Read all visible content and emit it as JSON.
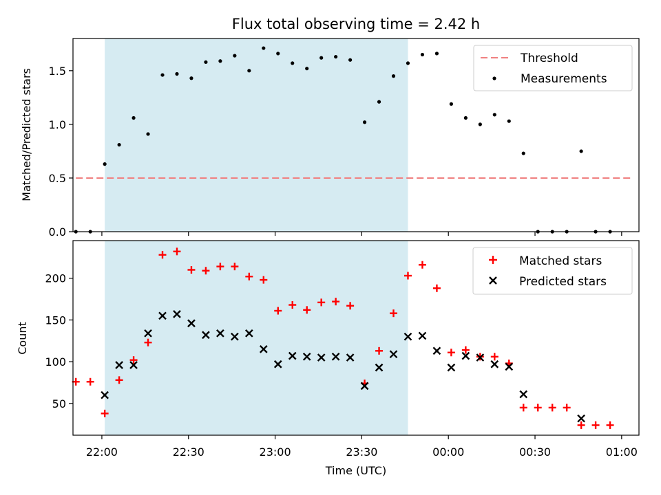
{
  "chart_data": [
    {
      "type": "scatter",
      "title": "Flux total observing time = 2.42 h",
      "xlabel": "",
      "ylabel": "Matched/Predicted stars",
      "xlim": [
        "21:50",
        "01:06"
      ],
      "ylim": [
        0,
        1.8
      ],
      "yticks": [
        0.0,
        0.5,
        1.0,
        1.5
      ],
      "ytick_labels": [
        "0.0",
        "0.5",
        "1.0",
        "1.5"
      ],
      "shaded_interval": [
        "22:01",
        "23:46"
      ],
      "shade_color": "#add8e6",
      "legend_position": "upper right",
      "threshold": {
        "name": "Threshold",
        "value": 0.5,
        "x": [
          "21:51",
          "01:04"
        ],
        "color": "#f08080"
      },
      "series": [
        {
          "name": "Measurements",
          "marker": "dot",
          "color": "#000000",
          "points": [
            [
              "21:51",
              0.0
            ],
            [
              "21:56",
              0.0
            ],
            [
              "22:01",
              0.63
            ],
            [
              "22:06",
              0.81
            ],
            [
              "22:11",
              1.06
            ],
            [
              "22:16",
              0.91
            ],
            [
              "22:21",
              1.46
            ],
            [
              "22:26",
              1.47
            ],
            [
              "22:31",
              1.43
            ],
            [
              "22:36",
              1.58
            ],
            [
              "22:41",
              1.59
            ],
            [
              "22:46",
              1.64
            ],
            [
              "22:51",
              1.5
            ],
            [
              "22:56",
              1.71
            ],
            [
              "23:01",
              1.66
            ],
            [
              "23:06",
              1.57
            ],
            [
              "23:11",
              1.52
            ],
            [
              "23:16",
              1.62
            ],
            [
              "23:21",
              1.63
            ],
            [
              "23:26",
              1.6
            ],
            [
              "23:31",
              1.02
            ],
            [
              "23:36",
              1.21
            ],
            [
              "23:41",
              1.45
            ],
            [
              "23:46",
              1.57
            ],
            [
              "23:51",
              1.65
            ],
            [
              "23:56",
              1.66
            ],
            [
              "00:01",
              1.19
            ],
            [
              "00:06",
              1.06
            ],
            [
              "00:11",
              1.0
            ],
            [
              "00:16",
              1.09
            ],
            [
              "00:21",
              1.03
            ],
            [
              "00:26",
              0.73
            ],
            [
              "00:31",
              0.0
            ],
            [
              "00:36",
              0.0
            ],
            [
              "00:41",
              0.0
            ],
            [
              "00:46",
              0.75
            ],
            [
              "00:51",
              0.0
            ],
            [
              "00:56",
              0.0
            ]
          ]
        }
      ]
    },
    {
      "type": "scatter",
      "title": "",
      "xlabel": "Time (UTC)",
      "ylabel": "Count",
      "xlim": [
        "21:50",
        "01:06"
      ],
      "ylim": [
        12,
        245
      ],
      "yticks": [
        50,
        100,
        150,
        200
      ],
      "ytick_labels": [
        "50",
        "100",
        "150",
        "200"
      ],
      "xticks": [
        "22:00",
        "22:30",
        "23:00",
        "23:30",
        "00:00",
        "00:30",
        "01:00"
      ],
      "shaded_interval": [
        "22:01",
        "23:46"
      ],
      "shade_color": "#add8e6",
      "legend_position": "upper right",
      "series": [
        {
          "name": "Matched stars",
          "marker": "plus",
          "color": "#ff0000",
          "points": [
            [
              "21:51",
              76
            ],
            [
              "21:56",
              76
            ],
            [
              "22:01",
              38
            ],
            [
              "22:06",
              78
            ],
            [
              "22:11",
              102
            ],
            [
              "22:16",
              123
            ],
            [
              "22:21",
              228
            ],
            [
              "22:26",
              232
            ],
            [
              "22:31",
              210
            ],
            [
              "22:36",
              209
            ],
            [
              "22:41",
              214
            ],
            [
              "22:46",
              214
            ],
            [
              "22:51",
              202
            ],
            [
              "22:56",
              198
            ],
            [
              "23:01",
              161
            ],
            [
              "23:06",
              168
            ],
            [
              "23:11",
              162
            ],
            [
              "23:16",
              171
            ],
            [
              "23:21",
              172
            ],
            [
              "23:26",
              167
            ],
            [
              "23:31",
              74
            ],
            [
              "23:36",
              113
            ],
            [
              "23:41",
              158
            ],
            [
              "23:46",
              203
            ],
            [
              "23:51",
              216
            ],
            [
              "23:56",
              188
            ],
            [
              "00:01",
              111
            ],
            [
              "00:06",
              114
            ],
            [
              "00:11",
              106
            ],
            [
              "00:16",
              106
            ],
            [
              "00:21",
              98
            ],
            [
              "00:26",
              45
            ],
            [
              "00:31",
              45
            ],
            [
              "00:36",
              45
            ],
            [
              "00:41",
              45
            ],
            [
              "00:46",
              24
            ],
            [
              "00:51",
              24
            ],
            [
              "00:56",
              24
            ]
          ]
        },
        {
          "name": "Predicted stars",
          "marker": "x",
          "color": "#000000",
          "points": [
            [
              "22:01",
              60
            ],
            [
              "22:06",
              96
            ],
            [
              "22:11",
              96
            ],
            [
              "22:16",
              134
            ],
            [
              "22:21",
              155
            ],
            [
              "22:26",
              157
            ],
            [
              "22:31",
              146
            ],
            [
              "22:36",
              132
            ],
            [
              "22:41",
              134
            ],
            [
              "22:46",
              130
            ],
            [
              "22:51",
              134
            ],
            [
              "22:56",
              115
            ],
            [
              "23:01",
              97
            ],
            [
              "23:06",
              107
            ],
            [
              "23:11",
              106
            ],
            [
              "23:16",
              105
            ],
            [
              "23:21",
              106
            ],
            [
              "23:26",
              105
            ],
            [
              "23:31",
              71
            ],
            [
              "23:36",
              93
            ],
            [
              "23:41",
              109
            ],
            [
              "23:46",
              130
            ],
            [
              "23:51",
              131
            ],
            [
              "23:56",
              113
            ],
            [
              "00:01",
              93
            ],
            [
              "00:06",
              107
            ],
            [
              "00:11",
              105
            ],
            [
              "00:16",
              97
            ],
            [
              "00:21",
              94
            ],
            [
              "00:26",
              61
            ],
            [
              "00:46",
              32
            ]
          ]
        }
      ]
    }
  ]
}
